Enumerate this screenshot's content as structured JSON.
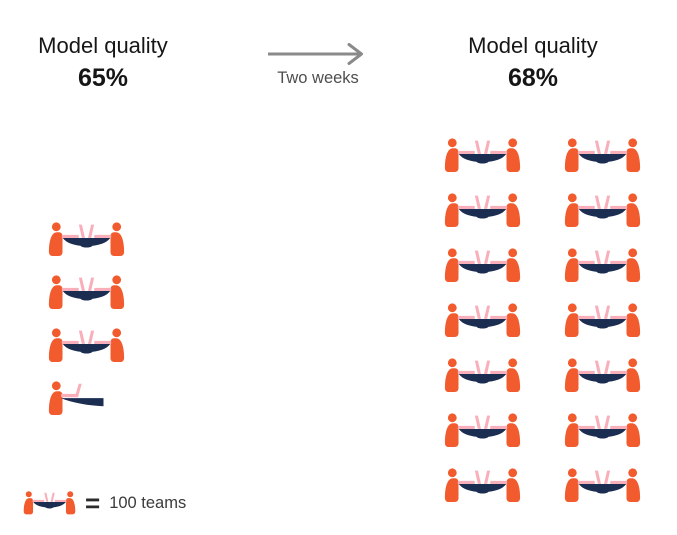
{
  "header": {
    "before": {
      "title": "Model quality",
      "value": "65%"
    },
    "transition_label": "Two weeks",
    "after": {
      "title": "Model quality",
      "value": "68%"
    }
  },
  "legend": {
    "equals_symbol": "=",
    "label": "100 teams"
  },
  "colors": {
    "person_orange": "#F15B2E",
    "table_navy": "#1C2D52",
    "laptop_pink": "#F9AFB9",
    "arrow_gray": "#8A8A8A",
    "title_text": "#161616",
    "transition_text": "#4E4E4E",
    "legend_text": "#3B3B3B"
  },
  "pictogram": {
    "icon_value": 100,
    "unit": "teams",
    "before_icons": 3.5,
    "after_icons": 14,
    "after_columns": 2
  },
  "chart_data": {
    "type": "pictograph",
    "categories": [
      "Model quality 65%",
      "Model quality 68%"
    ],
    "values": [
      350,
      1400
    ],
    "unit": "teams",
    "icon_value": 100,
    "icons_shown": [
      3.5,
      14
    ],
    "transition_annotation": "Two weeks",
    "legend": "1 team icon = 100 teams"
  }
}
